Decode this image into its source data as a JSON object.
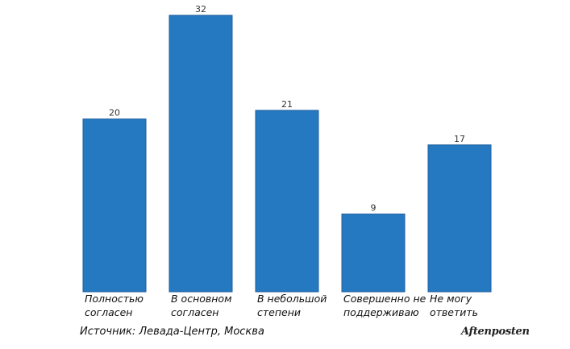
{
  "chart_data": {
    "type": "bar",
    "categories": [
      "Полностью согласен",
      "В основном согласен",
      "В небольшой степени",
      "Совершенно не поддерживаю",
      "Не могу ответить"
    ],
    "category_lines": [
      [
        "Полностью",
        "согласен"
      ],
      [
        "В основном",
        "согласен"
      ],
      [
        "В небольшой",
        "степени"
      ],
      [
        "Совершенно не",
        "поддерживаю"
      ],
      [
        "Не могу",
        "ответить"
      ]
    ],
    "values": [
      20,
      32,
      21,
      9,
      17
    ],
    "data_labels": [
      "20",
      "32",
      "21",
      "9",
      "17"
    ],
    "ylim": [
      0,
      32
    ],
    "grid": false,
    "bar_color": "#2479c1",
    "bar_edge_color": "#1f5f9e"
  },
  "footer": {
    "source": "Источник: Левада-Центр, Москва",
    "logo": "Aftenposten"
  }
}
